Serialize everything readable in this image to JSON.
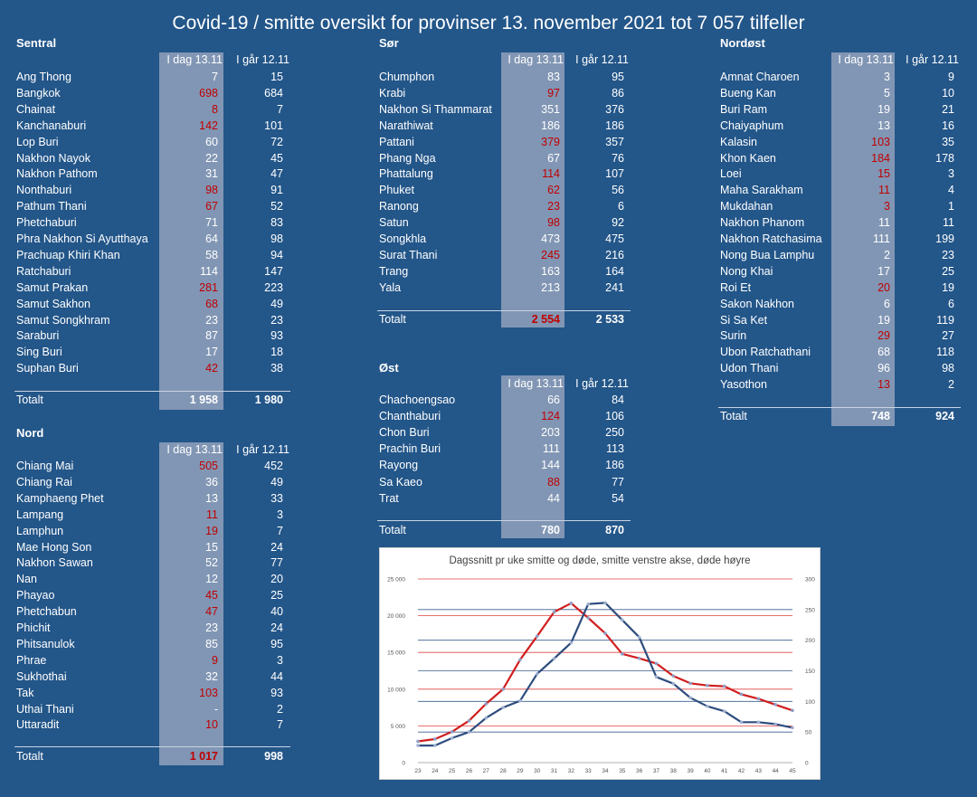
{
  "title": "Covid-19 / smitte oversikt for provinser 13. november 2021 tot 7 057 tilfeller",
  "col_today": "I dag 13.11",
  "col_yesterday": "I går 12.11",
  "total_label": "Totalt",
  "regions": {
    "sentral": {
      "name": "Sentral",
      "rows": [
        {
          "name": "Ang Thong",
          "today": "7",
          "yest": "15",
          "up": false
        },
        {
          "name": "Bangkok",
          "today": "698",
          "yest": "684",
          "up": true
        },
        {
          "name": "Chainat",
          "today": "8",
          "yest": "7",
          "up": true
        },
        {
          "name": "Kanchanaburi",
          "today": "142",
          "yest": "101",
          "up": true
        },
        {
          "name": "Lop Buri",
          "today": "60",
          "yest": "72",
          "up": false
        },
        {
          "name": "Nakhon Nayok",
          "today": "22",
          "yest": "45",
          "up": false
        },
        {
          "name": "Nakhon Pathom",
          "today": "31",
          "yest": "47",
          "up": false
        },
        {
          "name": "Nonthaburi",
          "today": "98",
          "yest": "91",
          "up": true
        },
        {
          "name": "Pathum Thani",
          "today": "67",
          "yest": "52",
          "up": true
        },
        {
          "name": "Phetchaburi",
          "today": "71",
          "yest": "83",
          "up": false
        },
        {
          "name": "Phra Nakhon Si Ayutthaya",
          "today": "64",
          "yest": "98",
          "up": false
        },
        {
          "name": "Prachuap Khiri Khan",
          "today": "58",
          "yest": "94",
          "up": false
        },
        {
          "name": "Ratchaburi",
          "today": "114",
          "yest": "147",
          "up": false
        },
        {
          "name": "Samut Prakan",
          "today": "281",
          "yest": "223",
          "up": true
        },
        {
          "name": "Samut Sakhon",
          "today": "68",
          "yest": "49",
          "up": true
        },
        {
          "name": "Samut Songkhram",
          "today": "23",
          "yest": "23",
          "up": false
        },
        {
          "name": "Saraburi",
          "today": "87",
          "yest": "93",
          "up": false
        },
        {
          "name": "Sing Buri",
          "today": "17",
          "yest": "18",
          "up": false
        },
        {
          "name": "Suphan Buri",
          "today": "42",
          "yest": "38",
          "up": true
        }
      ],
      "total_today": "1 958",
      "total_yest": "1 980",
      "total_up": false
    },
    "nord": {
      "name": "Nord",
      "rows": [
        {
          "name": "Chiang Mai",
          "today": "505",
          "yest": "452",
          "up": true
        },
        {
          "name": "Chiang Rai",
          "today": "36",
          "yest": "49",
          "up": false
        },
        {
          "name": "Kamphaeng Phet",
          "today": "13",
          "yest": "33",
          "up": false
        },
        {
          "name": "Lampang",
          "today": "11",
          "yest": "3",
          "up": true
        },
        {
          "name": "Lamphun",
          "today": "19",
          "yest": "7",
          "up": true
        },
        {
          "name": "Mae Hong Son",
          "today": "15",
          "yest": "24",
          "up": false
        },
        {
          "name": "Nakhon Sawan",
          "today": "52",
          "yest": "77",
          "up": false
        },
        {
          "name": "Nan",
          "today": "12",
          "yest": "20",
          "up": false
        },
        {
          "name": "Phayao",
          "today": "45",
          "yest": "25",
          "up": true
        },
        {
          "name": "Phetchabun",
          "today": "47",
          "yest": "40",
          "up": true
        },
        {
          "name": "Phichit",
          "today": "23",
          "yest": "24",
          "up": false
        },
        {
          "name": "Phitsanulok",
          "today": "85",
          "yest": "95",
          "up": false
        },
        {
          "name": "Phrae",
          "today": "9",
          "yest": "3",
          "up": true
        },
        {
          "name": "Sukhothai",
          "today": "32",
          "yest": "44",
          "up": false
        },
        {
          "name": "Tak",
          "today": "103",
          "yest": "93",
          "up": true
        },
        {
          "name": "Uthai Thani",
          "today": "-",
          "yest": "2",
          "up": false
        },
        {
          "name": "Uttaradit",
          "today": "10",
          "yest": "7",
          "up": true
        }
      ],
      "total_today": "1 017",
      "total_yest": "998",
      "total_up": true
    },
    "sor": {
      "name": "Sør",
      "rows": [
        {
          "name": "Chumphon",
          "today": "83",
          "yest": "95",
          "up": false
        },
        {
          "name": "Krabi",
          "today": "97",
          "yest": "86",
          "up": true
        },
        {
          "name": "Nakhon Si Thammarat",
          "today": "351",
          "yest": "376",
          "up": false
        },
        {
          "name": "Narathiwat",
          "today": "186",
          "yest": "186",
          "up": false
        },
        {
          "name": "Pattani",
          "today": "379",
          "yest": "357",
          "up": true
        },
        {
          "name": "Phang Nga",
          "today": "67",
          "yest": "76",
          "up": false
        },
        {
          "name": "Phattalung",
          "today": "114",
          "yest": "107",
          "up": true
        },
        {
          "name": "Phuket",
          "today": "62",
          "yest": "56",
          "up": true
        },
        {
          "name": "Ranong",
          "today": "23",
          "yest": "6",
          "up": true
        },
        {
          "name": "Satun",
          "today": "98",
          "yest": "92",
          "up": true
        },
        {
          "name": "Songkhla",
          "today": "473",
          "yest": "475",
          "up": false
        },
        {
          "name": "Surat Thani",
          "today": "245",
          "yest": "216",
          "up": true
        },
        {
          "name": "Trang",
          "today": "163",
          "yest": "164",
          "up": false
        },
        {
          "name": "Yala",
          "today": "213",
          "yest": "241",
          "up": false
        }
      ],
      "total_today": "2 554",
      "total_yest": "2 533",
      "total_up": true
    },
    "ost": {
      "name": "Øst",
      "rows": [
        {
          "name": "Chachoengsao",
          "today": "66",
          "yest": "84",
          "up": false
        },
        {
          "name": "Chanthaburi",
          "today": "124",
          "yest": "106",
          "up": true
        },
        {
          "name": "Chon Buri",
          "today": "203",
          "yest": "250",
          "up": false
        },
        {
          "name": "Prachin Buri",
          "today": "111",
          "yest": "113",
          "up": false
        },
        {
          "name": "Rayong",
          "today": "144",
          "yest": "186",
          "up": false
        },
        {
          "name": "Sa Kaeo",
          "today": "88",
          "yest": "77",
          "up": true
        },
        {
          "name": "Trat",
          "today": "44",
          "yest": "54",
          "up": false
        }
      ],
      "total_today": "780",
      "total_yest": "870",
      "total_up": false
    },
    "nordost": {
      "name": "Nordøst",
      "rows": [
        {
          "name": "Amnat Charoen",
          "today": "3",
          "yest": "9",
          "up": false
        },
        {
          "name": "Bueng Kan",
          "today": "5",
          "yest": "10",
          "up": false
        },
        {
          "name": "Buri Ram",
          "today": "19",
          "yest": "21",
          "up": false
        },
        {
          "name": "Chaiyaphum",
          "today": "13",
          "yest": "16",
          "up": false
        },
        {
          "name": "Kalasin",
          "today": "103",
          "yest": "35",
          "up": true
        },
        {
          "name": "Khon Kaen",
          "today": "184",
          "yest": "178",
          "up": true
        },
        {
          "name": "Loei",
          "today": "15",
          "yest": "3",
          "up": true
        },
        {
          "name": "Maha Sarakham",
          "today": "11",
          "yest": "4",
          "up": true
        },
        {
          "name": "Mukdahan",
          "today": "3",
          "yest": "1",
          "up": true
        },
        {
          "name": "Nakhon Phanom",
          "today": "11",
          "yest": "11",
          "up": false
        },
        {
          "name": "Nakhon Ratchasima",
          "today": "111",
          "yest": "199",
          "up": false
        },
        {
          "name": "Nong Bua Lamphu",
          "today": "2",
          "yest": "23",
          "up": false
        },
        {
          "name": "Nong Khai",
          "today": "17",
          "yest": "25",
          "up": false
        },
        {
          "name": "Roi Et",
          "today": "20",
          "yest": "19",
          "up": true
        },
        {
          "name": "Sakon Nakhon",
          "today": "6",
          "yest": "6",
          "up": false
        },
        {
          "name": "Si Sa Ket",
          "today": "19",
          "yest": "119",
          "up": false
        },
        {
          "name": "Surin",
          "today": "29",
          "yest": "27",
          "up": true
        },
        {
          "name": "Ubon Ratchathani",
          "today": "68",
          "yest": "118",
          "up": false
        },
        {
          "name": "Udon Thani",
          "today": "96",
          "yest": "98",
          "up": false
        },
        {
          "name": "Yasothon",
          "today": "13",
          "yest": "2",
          "up": true
        }
      ],
      "total_today": "748",
      "total_yest": "924",
      "total_up": false
    }
  },
  "colors": {
    "background": "#235689",
    "highlight_column": "#8196b4",
    "increase_red": "#c00000",
    "infections_line": "#d11f1f",
    "deaths_line": "#2e4d7e"
  },
  "chart_data": {
    "type": "line",
    "title": "Dagssnitt pr uke smitte og døde, smitte venstre akse, døde høyre",
    "x": [
      23,
      24,
      25,
      26,
      27,
      28,
      29,
      30,
      31,
      32,
      33,
      34,
      35,
      36,
      37,
      38,
      39,
      40,
      41,
      42,
      43,
      44,
      45
    ],
    "y_left_ticks": [
      "0",
      "5 000",
      "10 000",
      "15 000",
      "20 000",
      "25 000"
    ],
    "y_right_ticks": [
      "0",
      "50",
      "100",
      "150",
      "200",
      "250",
      "300"
    ],
    "ylim_left": [
      0,
      25000
    ],
    "ylim_right": [
      0,
      300
    ],
    "series": [
      {
        "axis": "left",
        "color": "#d11f1f",
        "values": [
          2900,
          3200,
          4200,
          5700,
          8000,
          10000,
          14000,
          17200,
          20500,
          21700,
          19700,
          17600,
          14800,
          14200,
          13500,
          11800,
          10800,
          10500,
          10400,
          9300,
          8700,
          7900,
          7100
        ]
      },
      {
        "axis": "right",
        "color": "#2e4d7e",
        "values": [
          28,
          28,
          40,
          50,
          73,
          90,
          101,
          145,
          170,
          196,
          259,
          261,
          233,
          205,
          140,
          129,
          106,
          92,
          84,
          66,
          66,
          63,
          57
        ]
      }
    ],
    "grid": true
  }
}
